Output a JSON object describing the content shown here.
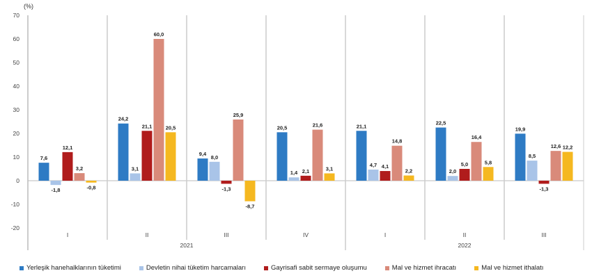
{
  "chart_data": {
    "type": "bar",
    "ylabel": "(%)",
    "ylim": [
      -20,
      70
    ],
    "yticks": [
      70,
      60,
      50,
      40,
      30,
      20,
      10,
      0,
      -10,
      -20
    ],
    "grid": false,
    "legend_position": "bottom",
    "categories": [
      "I",
      "II",
      "III",
      "IV",
      "I",
      "II",
      "III"
    ],
    "year_groups": [
      {
        "label": "2021",
        "span": 4
      },
      {
        "label": "2022",
        "span": 3
      }
    ],
    "series": [
      {
        "name": "Yerleşik hanehalklarının tüketimi",
        "color": "#2e7bc4",
        "values": [
          7.6,
          24.2,
          9.4,
          20.5,
          21.1,
          22.5,
          19.9
        ]
      },
      {
        "name": "Devletin nihai tüketim harcamaları",
        "color": "#a9c4e8",
        "values": [
          -1.8,
          3.1,
          8.0,
          1.4,
          4.7,
          2.0,
          8.5
        ]
      },
      {
        "name": "Gayrisafi sabit sermaye oluşumu",
        "color": "#b01c1c",
        "values": [
          12.1,
          21.1,
          -1.3,
          2.1,
          4.1,
          5.0,
          -1.3
        ]
      },
      {
        "name": "Mal ve hizmet ihracatı",
        "color": "#d98a7a",
        "values": [
          3.2,
          60.0,
          25.9,
          21.6,
          14.8,
          16.4,
          12.6
        ]
      },
      {
        "name": "Mal ve hizmet ithalatı",
        "color": "#f5b820",
        "values": [
          -0.8,
          20.5,
          -8.7,
          3.1,
          2.2,
          5.8,
          12.2
        ]
      }
    ]
  }
}
